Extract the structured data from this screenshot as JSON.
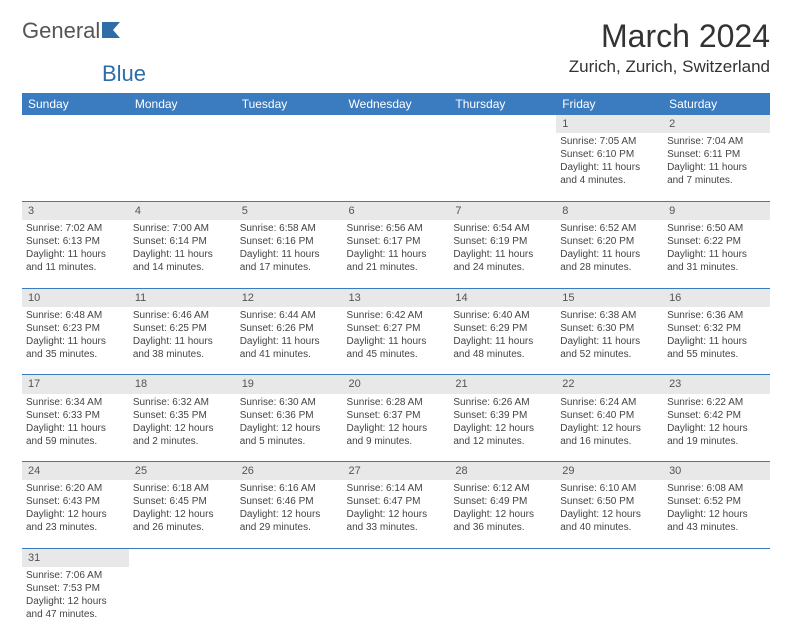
{
  "logo": {
    "text1": "General",
    "text2": "Blue"
  },
  "title": "March 2024",
  "location": "Zurich, Zurich, Switzerland",
  "weekdays": [
    "Sunday",
    "Monday",
    "Tuesday",
    "Wednesday",
    "Thursday",
    "Friday",
    "Saturday"
  ],
  "colors": {
    "header_bg": "#3b7bbf",
    "header_text": "#ffffff",
    "daynum_bg": "#e8e8e8",
    "border": "#3b7bbf"
  },
  "weeks": [
    [
      null,
      null,
      null,
      null,
      null,
      {
        "day": "1",
        "sunrise": "Sunrise: 7:05 AM",
        "sunset": "Sunset: 6:10 PM",
        "daylight": "Daylight: 11 hours and 4 minutes."
      },
      {
        "day": "2",
        "sunrise": "Sunrise: 7:04 AM",
        "sunset": "Sunset: 6:11 PM",
        "daylight": "Daylight: 11 hours and 7 minutes."
      }
    ],
    [
      {
        "day": "3",
        "sunrise": "Sunrise: 7:02 AM",
        "sunset": "Sunset: 6:13 PM",
        "daylight": "Daylight: 11 hours and 11 minutes."
      },
      {
        "day": "4",
        "sunrise": "Sunrise: 7:00 AM",
        "sunset": "Sunset: 6:14 PM",
        "daylight": "Daylight: 11 hours and 14 minutes."
      },
      {
        "day": "5",
        "sunrise": "Sunrise: 6:58 AM",
        "sunset": "Sunset: 6:16 PM",
        "daylight": "Daylight: 11 hours and 17 minutes."
      },
      {
        "day": "6",
        "sunrise": "Sunrise: 6:56 AM",
        "sunset": "Sunset: 6:17 PM",
        "daylight": "Daylight: 11 hours and 21 minutes."
      },
      {
        "day": "7",
        "sunrise": "Sunrise: 6:54 AM",
        "sunset": "Sunset: 6:19 PM",
        "daylight": "Daylight: 11 hours and 24 minutes."
      },
      {
        "day": "8",
        "sunrise": "Sunrise: 6:52 AM",
        "sunset": "Sunset: 6:20 PM",
        "daylight": "Daylight: 11 hours and 28 minutes."
      },
      {
        "day": "9",
        "sunrise": "Sunrise: 6:50 AM",
        "sunset": "Sunset: 6:22 PM",
        "daylight": "Daylight: 11 hours and 31 minutes."
      }
    ],
    [
      {
        "day": "10",
        "sunrise": "Sunrise: 6:48 AM",
        "sunset": "Sunset: 6:23 PM",
        "daylight": "Daylight: 11 hours and 35 minutes."
      },
      {
        "day": "11",
        "sunrise": "Sunrise: 6:46 AM",
        "sunset": "Sunset: 6:25 PM",
        "daylight": "Daylight: 11 hours and 38 minutes."
      },
      {
        "day": "12",
        "sunrise": "Sunrise: 6:44 AM",
        "sunset": "Sunset: 6:26 PM",
        "daylight": "Daylight: 11 hours and 41 minutes."
      },
      {
        "day": "13",
        "sunrise": "Sunrise: 6:42 AM",
        "sunset": "Sunset: 6:27 PM",
        "daylight": "Daylight: 11 hours and 45 minutes."
      },
      {
        "day": "14",
        "sunrise": "Sunrise: 6:40 AM",
        "sunset": "Sunset: 6:29 PM",
        "daylight": "Daylight: 11 hours and 48 minutes."
      },
      {
        "day": "15",
        "sunrise": "Sunrise: 6:38 AM",
        "sunset": "Sunset: 6:30 PM",
        "daylight": "Daylight: 11 hours and 52 minutes."
      },
      {
        "day": "16",
        "sunrise": "Sunrise: 6:36 AM",
        "sunset": "Sunset: 6:32 PM",
        "daylight": "Daylight: 11 hours and 55 minutes."
      }
    ],
    [
      {
        "day": "17",
        "sunrise": "Sunrise: 6:34 AM",
        "sunset": "Sunset: 6:33 PM",
        "daylight": "Daylight: 11 hours and 59 minutes."
      },
      {
        "day": "18",
        "sunrise": "Sunrise: 6:32 AM",
        "sunset": "Sunset: 6:35 PM",
        "daylight": "Daylight: 12 hours and 2 minutes."
      },
      {
        "day": "19",
        "sunrise": "Sunrise: 6:30 AM",
        "sunset": "Sunset: 6:36 PM",
        "daylight": "Daylight: 12 hours and 5 minutes."
      },
      {
        "day": "20",
        "sunrise": "Sunrise: 6:28 AM",
        "sunset": "Sunset: 6:37 PM",
        "daylight": "Daylight: 12 hours and 9 minutes."
      },
      {
        "day": "21",
        "sunrise": "Sunrise: 6:26 AM",
        "sunset": "Sunset: 6:39 PM",
        "daylight": "Daylight: 12 hours and 12 minutes."
      },
      {
        "day": "22",
        "sunrise": "Sunrise: 6:24 AM",
        "sunset": "Sunset: 6:40 PM",
        "daylight": "Daylight: 12 hours and 16 minutes."
      },
      {
        "day": "23",
        "sunrise": "Sunrise: 6:22 AM",
        "sunset": "Sunset: 6:42 PM",
        "daylight": "Daylight: 12 hours and 19 minutes."
      }
    ],
    [
      {
        "day": "24",
        "sunrise": "Sunrise: 6:20 AM",
        "sunset": "Sunset: 6:43 PM",
        "daylight": "Daylight: 12 hours and 23 minutes."
      },
      {
        "day": "25",
        "sunrise": "Sunrise: 6:18 AM",
        "sunset": "Sunset: 6:45 PM",
        "daylight": "Daylight: 12 hours and 26 minutes."
      },
      {
        "day": "26",
        "sunrise": "Sunrise: 6:16 AM",
        "sunset": "Sunset: 6:46 PM",
        "daylight": "Daylight: 12 hours and 29 minutes."
      },
      {
        "day": "27",
        "sunrise": "Sunrise: 6:14 AM",
        "sunset": "Sunset: 6:47 PM",
        "daylight": "Daylight: 12 hours and 33 minutes."
      },
      {
        "day": "28",
        "sunrise": "Sunrise: 6:12 AM",
        "sunset": "Sunset: 6:49 PM",
        "daylight": "Daylight: 12 hours and 36 minutes."
      },
      {
        "day": "29",
        "sunrise": "Sunrise: 6:10 AM",
        "sunset": "Sunset: 6:50 PM",
        "daylight": "Daylight: 12 hours and 40 minutes."
      },
      {
        "day": "30",
        "sunrise": "Sunrise: 6:08 AM",
        "sunset": "Sunset: 6:52 PM",
        "daylight": "Daylight: 12 hours and 43 minutes."
      }
    ],
    [
      {
        "day": "31",
        "sunrise": "Sunrise: 7:06 AM",
        "sunset": "Sunset: 7:53 PM",
        "daylight": "Daylight: 12 hours and 47 minutes."
      },
      null,
      null,
      null,
      null,
      null,
      null
    ]
  ]
}
